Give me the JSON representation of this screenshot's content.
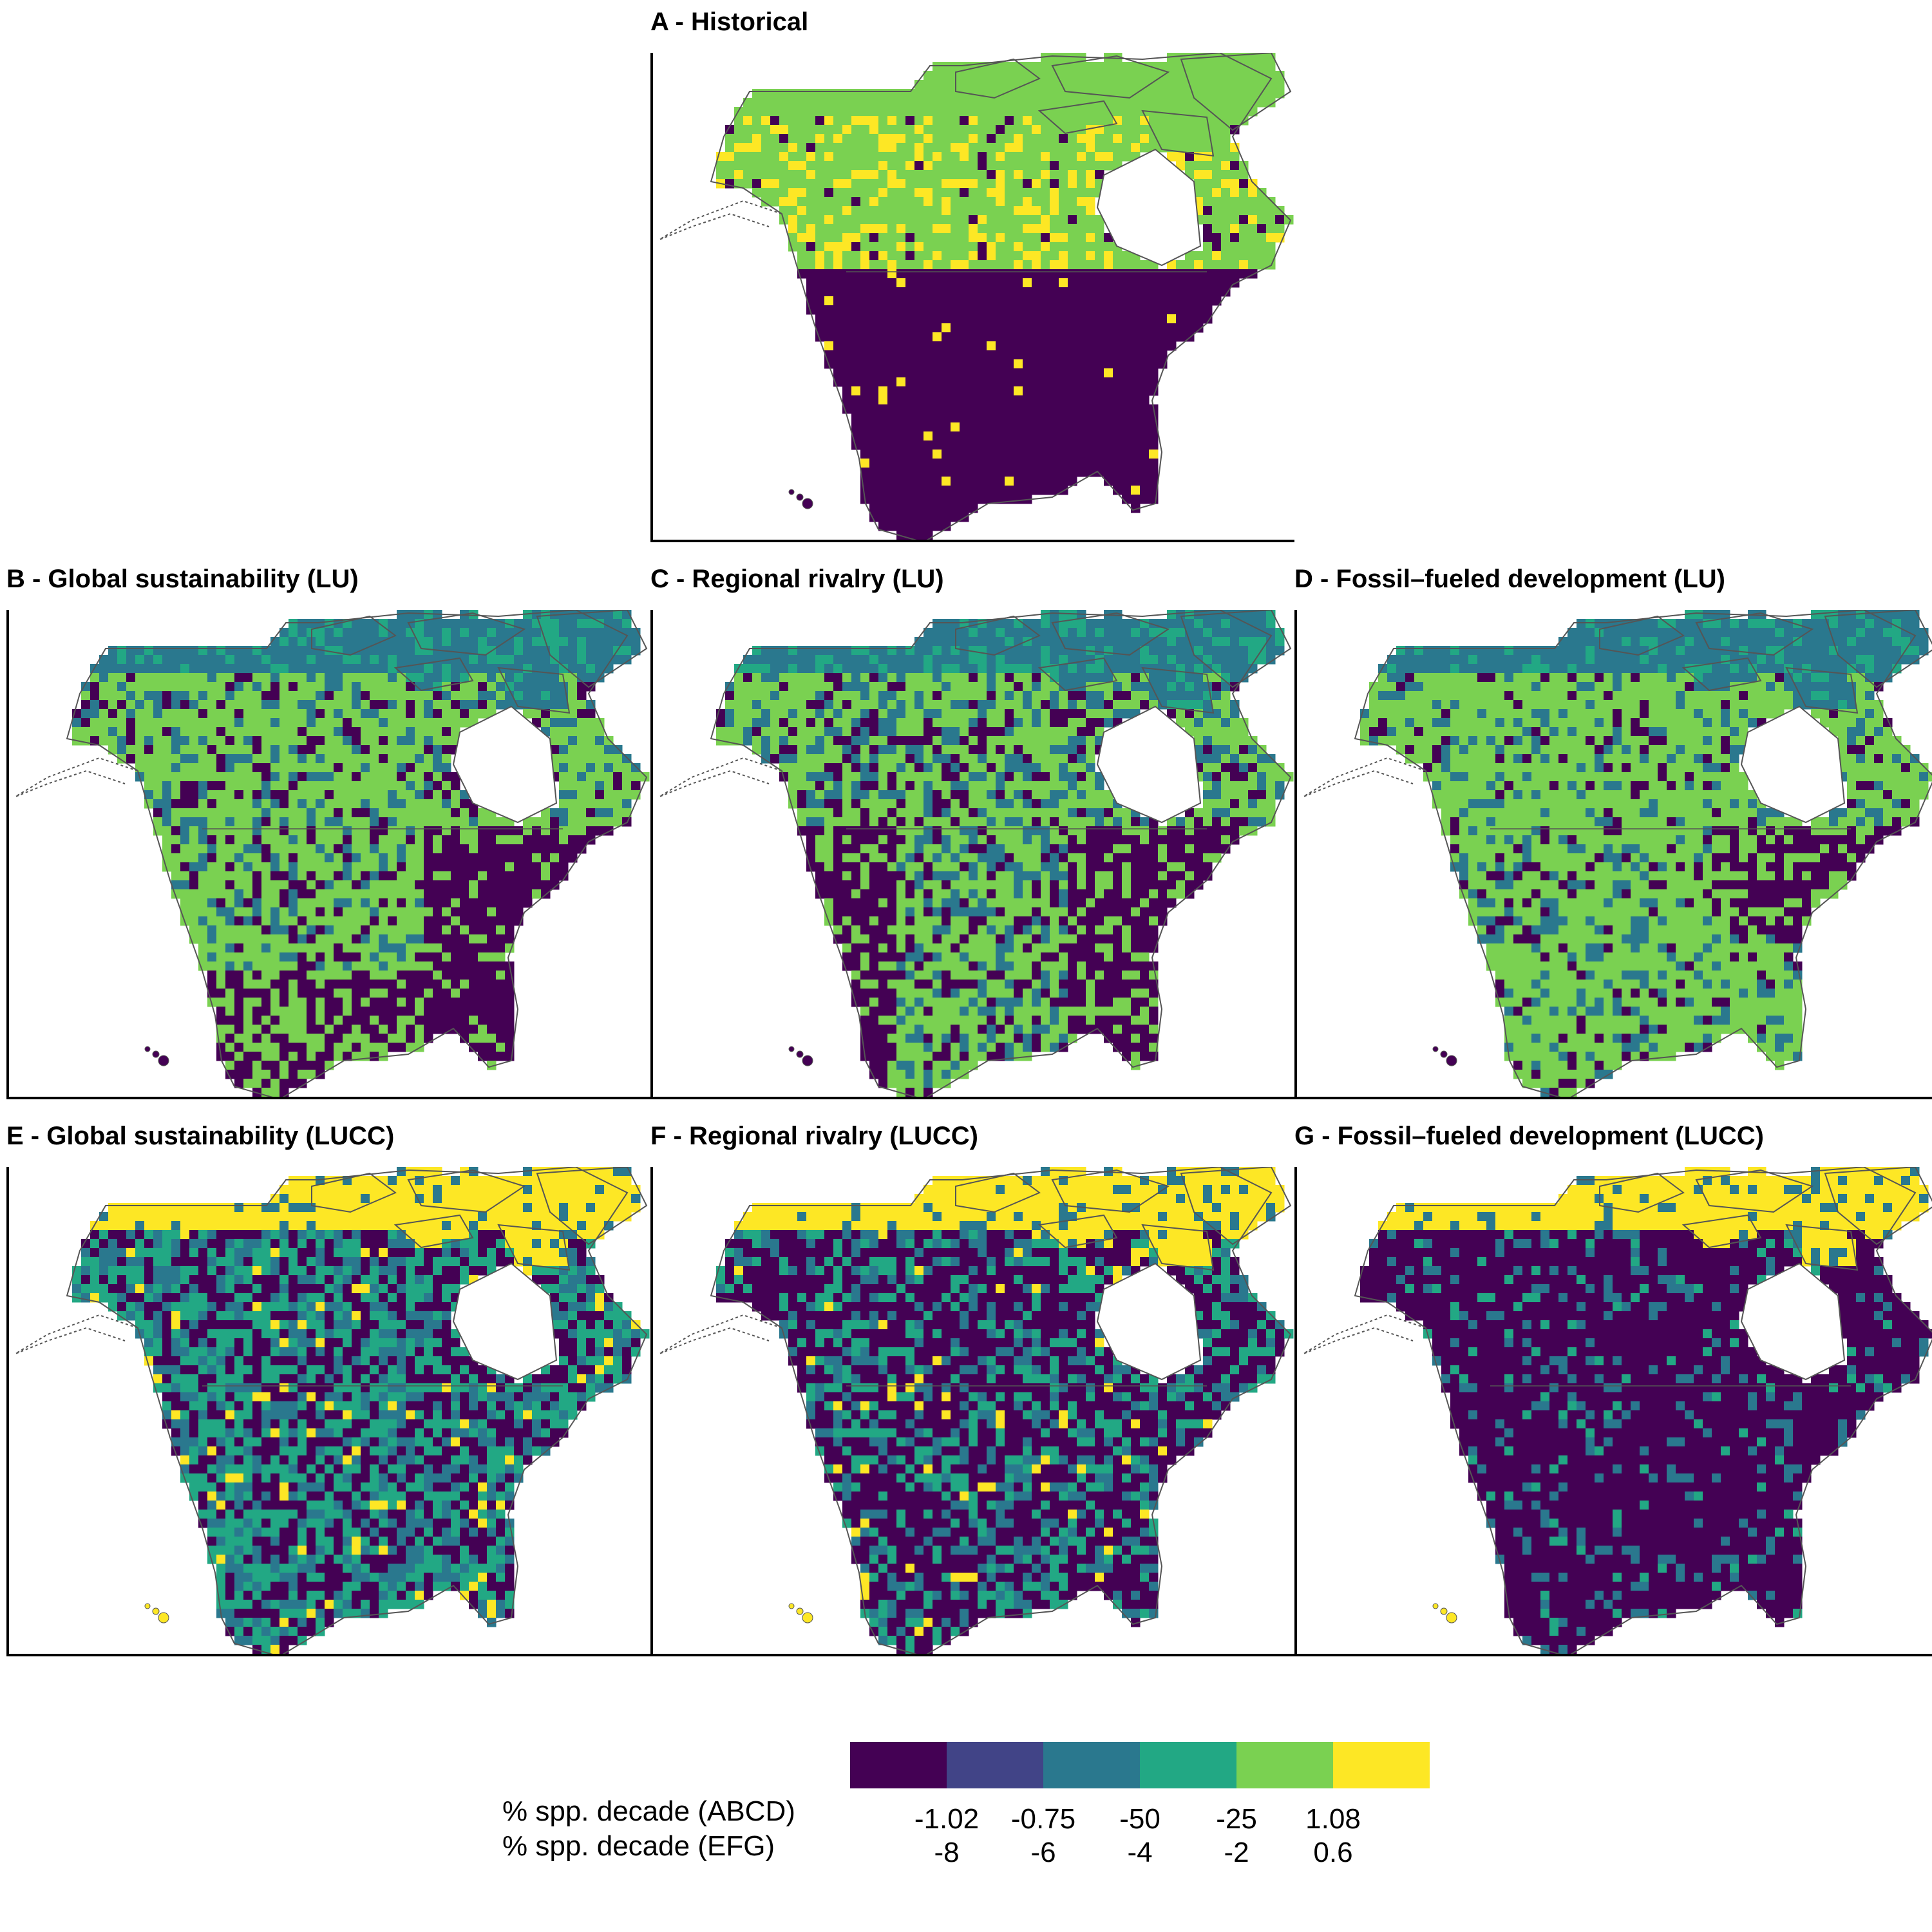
{
  "colors": {
    "c1": "#440154",
    "c2": "#414487",
    "c3": "#2a788e",
    "c4": "#22a884",
    "c5": "#7ad151",
    "c6": "#fde725",
    "land_outline": "#555555"
  },
  "panels": [
    {
      "id": "A",
      "title": "A - Historical",
      "scheme": "historical"
    },
    {
      "id": "B",
      "title": "B - Global sustainability (LU)",
      "scheme": "lu_gs"
    },
    {
      "id": "C",
      "title": "C - Regional rivalry (LU)",
      "scheme": "lu_rr"
    },
    {
      "id": "D",
      "title": "D - Fossil–fueled development (LU)",
      "scheme": "lu_fd"
    },
    {
      "id": "E",
      "title": "E - Global sustainability (LUCC)",
      "scheme": "lucc_gs"
    },
    {
      "id": "F",
      "title": "F - Regional rivalry (LUCC)",
      "scheme": "lucc_rr"
    },
    {
      "id": "G",
      "title": "G - Fossil–fueled development (LUCC)",
      "scheme": "lucc_fd"
    }
  ],
  "legend": {
    "caption_abcd": "% spp. decade (ABCD)",
    "caption_efg": "% spp. decade (EFG)",
    "ticks_abcd": [
      "-1.02",
      "-0.75",
      "-50",
      "-25",
      "1.08"
    ],
    "ticks_efg": [
      "-8",
      "-6",
      "-4",
      "-2",
      "0.6"
    ],
    "swatches": [
      "c1",
      "c2",
      "c3",
      "c4",
      "c5",
      "c6"
    ]
  }
}
